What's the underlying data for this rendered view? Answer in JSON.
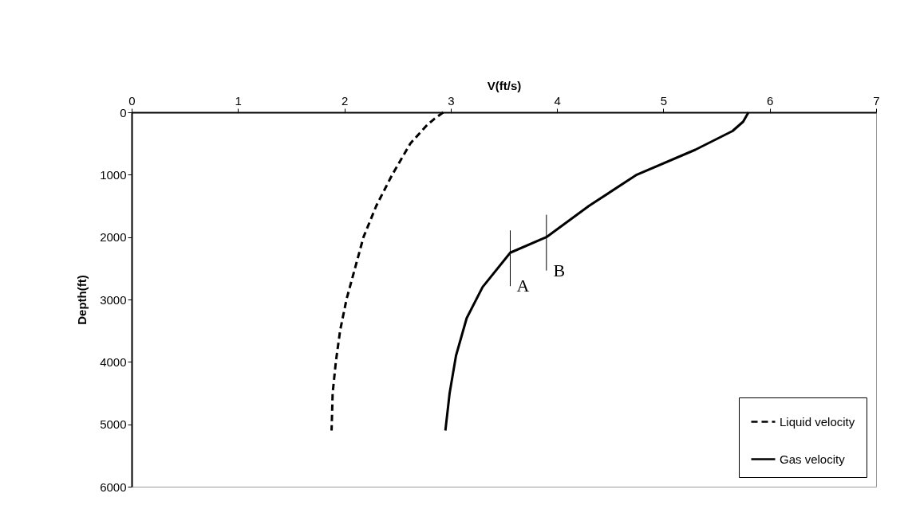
{
  "chart_data": {
    "type": "line",
    "xlabel": "V(ft/s)",
    "ylabel": "Depth(ft)",
    "xlim": [
      0,
      7
    ],
    "xticks": [
      0,
      1,
      2,
      3,
      4,
      5,
      6,
      7
    ],
    "ylim": [
      6000,
      0
    ],
    "yticks": [
      0,
      1000,
      2000,
      3000,
      4000,
      5000,
      6000
    ],
    "grid": false,
    "legend": "bottom right",
    "marker": "none",
    "series": [
      {
        "name": "Liquid velocity",
        "color": "#000000",
        "line_style": "dashed",
        "x": [
          2.93,
          2.85,
          2.78,
          2.62,
          2.45,
          2.3,
          2.18,
          2.1,
          2.02,
          1.96,
          1.92,
          1.89,
          1.88
        ],
        "values": [
          0,
          100,
          200,
          500,
          1000,
          1500,
          2000,
          2500,
          3000,
          3500,
          4000,
          4500,
          5100
        ]
      },
      {
        "name": "Gas velocity",
        "color": "#000000",
        "line_style": "solid",
        "x": [
          5.8,
          5.75,
          5.65,
          5.3,
          4.75,
          4.3,
          3.9,
          3.56,
          3.3,
          3.15,
          3.05,
          2.99,
          2.95
        ],
        "values": [
          0,
          150,
          300,
          600,
          1000,
          1500,
          2000,
          2250,
          2800,
          3300,
          3900,
          4500,
          5100
        ]
      }
    ],
    "annotations": [
      {
        "text": "A",
        "x": 3.56,
        "y": 2250
      },
      {
        "text": "B",
        "x": 3.9,
        "y": 2000
      }
    ]
  }
}
